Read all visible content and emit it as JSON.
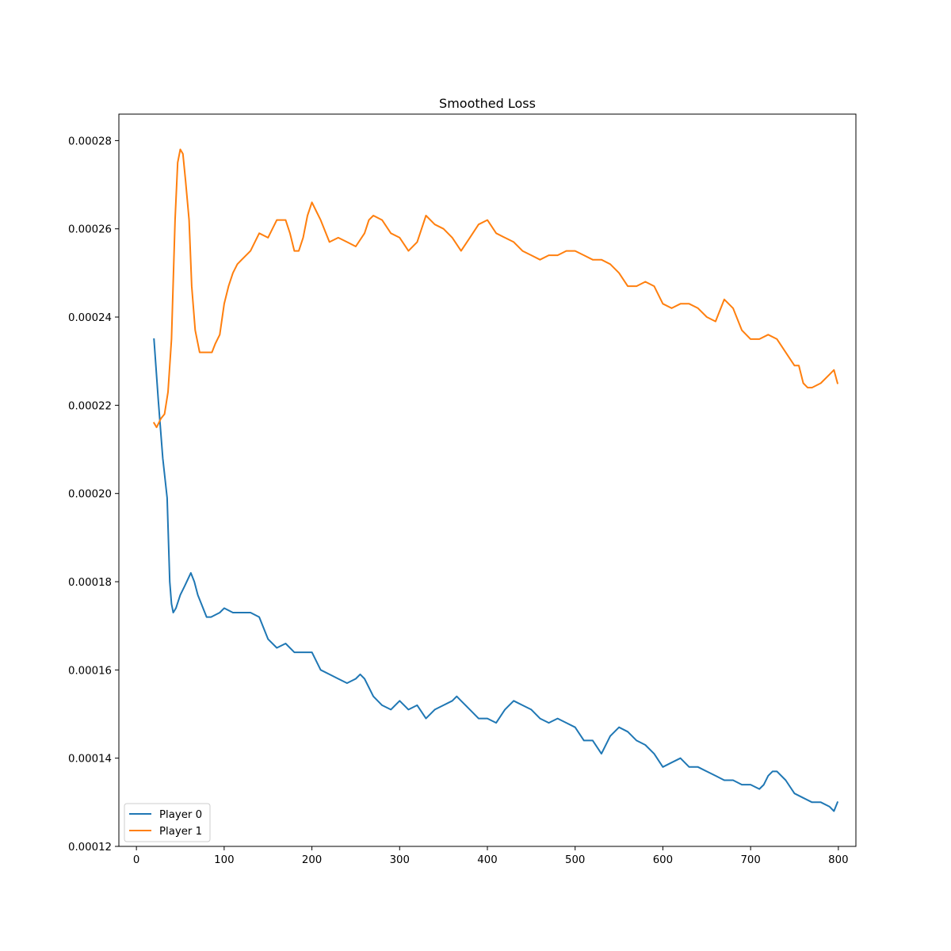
{
  "chart_data": {
    "type": "line",
    "title": "Smoothed Loss",
    "xlabel": "",
    "ylabel": "",
    "xlim": [
      -20,
      820
    ],
    "ylim": [
      0.00012,
      0.000286
    ],
    "xticks": [
      0,
      100,
      200,
      300,
      400,
      500,
      600,
      700,
      800
    ],
    "xtick_labels": [
      "0",
      "100",
      "200",
      "300",
      "400",
      "500",
      "600",
      "700",
      "800"
    ],
    "yticks": [
      0.00012,
      0.00014,
      0.00016,
      0.00018,
      0.0002,
      0.00022,
      0.00024,
      0.00026,
      0.00028
    ],
    "ytick_labels": [
      "0.00012",
      "0.00014",
      "0.00016",
      "0.00018",
      "0.00020",
      "0.00022",
      "0.00024",
      "0.00026",
      "0.00028"
    ],
    "grid": false,
    "legend_position": "lower-left",
    "series": [
      {
        "name": "Player 0",
        "color": "#1f77b4",
        "x": [
          20,
          25,
          30,
          35,
          38,
          40,
          42,
          45,
          50,
          55,
          62,
          66,
          70,
          80,
          85,
          95,
          100,
          110,
          120,
          130,
          140,
          150,
          160,
          170,
          180,
          190,
          200,
          210,
          220,
          230,
          240,
          250,
          255,
          260,
          270,
          280,
          290,
          300,
          310,
          320,
          330,
          340,
          350,
          360,
          365,
          370,
          380,
          390,
          400,
          410,
          420,
          430,
          440,
          450,
          460,
          470,
          480,
          490,
          500,
          510,
          520,
          530,
          540,
          550,
          560,
          570,
          580,
          590,
          600,
          610,
          620,
          630,
          640,
          650,
          660,
          670,
          680,
          690,
          700,
          710,
          715,
          720,
          725,
          730,
          740,
          750,
          760,
          770,
          780,
          790,
          795,
          799
        ],
        "values": [
          0.000235,
          0.000221,
          0.000208,
          0.000199,
          0.00018,
          0.000175,
          0.000173,
          0.000174,
          0.000177,
          0.000179,
          0.000182,
          0.00018,
          0.000177,
          0.000172,
          0.000172,
          0.000173,
          0.000174,
          0.000173,
          0.000173,
          0.000173,
          0.000172,
          0.000167,
          0.000165,
          0.000166,
          0.000164,
          0.000164,
          0.000164,
          0.00016,
          0.000159,
          0.000158,
          0.000157,
          0.000158,
          0.000159,
          0.000158,
          0.000154,
          0.000152,
          0.000151,
          0.000153,
          0.000151,
          0.000152,
          0.000149,
          0.000151,
          0.000152,
          0.000153,
          0.000154,
          0.000153,
          0.000151,
          0.000149,
          0.000149,
          0.000148,
          0.000151,
          0.000153,
          0.000152,
          0.000151,
          0.000149,
          0.000148,
          0.000149,
          0.000148,
          0.000147,
          0.000144,
          0.000144,
          0.000141,
          0.000145,
          0.000147,
          0.000146,
          0.000144,
          0.000143,
          0.000141,
          0.000138,
          0.000139,
          0.00014,
          0.000138,
          0.000138,
          0.000137,
          0.000136,
          0.000135,
          0.000135,
          0.000134,
          0.000134,
          0.000133,
          0.000134,
          0.000136,
          0.000137,
          0.000137,
          0.000135,
          0.000132,
          0.000131,
          0.00013,
          0.00013,
          0.000129,
          0.000128,
          0.00013
        ]
      },
      {
        "name": "Player 1",
        "color": "#ff7f0e",
        "x": [
          20,
          23,
          28,
          32,
          36,
          40,
          44,
          47,
          50,
          53,
          56,
          60,
          63,
          67,
          72,
          77,
          82,
          86,
          90,
          95,
          100,
          105,
          110,
          115,
          120,
          130,
          140,
          150,
          160,
          170,
          175,
          180,
          185,
          190,
          195,
          200,
          205,
          210,
          220,
          230,
          240,
          250,
          260,
          265,
          270,
          280,
          290,
          300,
          310,
          320,
          330,
          340,
          350,
          360,
          370,
          380,
          390,
          400,
          410,
          420,
          430,
          440,
          450,
          460,
          470,
          480,
          490,
          500,
          510,
          520,
          530,
          540,
          550,
          560,
          570,
          580,
          590,
          600,
          610,
          620,
          630,
          640,
          650,
          660,
          670,
          680,
          690,
          700,
          710,
          720,
          730,
          740,
          750,
          755,
          760,
          765,
          770,
          780,
          790,
          795,
          799
        ],
        "values": [
          0.000216,
          0.000215,
          0.000217,
          0.000218,
          0.000223,
          0.000235,
          0.000262,
          0.000275,
          0.000278,
          0.000277,
          0.000271,
          0.000262,
          0.000247,
          0.000237,
          0.000232,
          0.000232,
          0.000232,
          0.000232,
          0.000234,
          0.000236,
          0.000243,
          0.000247,
          0.00025,
          0.000252,
          0.000253,
          0.000255,
          0.000259,
          0.000258,
          0.000262,
          0.000262,
          0.000259,
          0.000255,
          0.000255,
          0.000258,
          0.000263,
          0.000266,
          0.000264,
          0.000262,
          0.000257,
          0.000258,
          0.000257,
          0.000256,
          0.000259,
          0.000262,
          0.000263,
          0.000262,
          0.000259,
          0.000258,
          0.000255,
          0.000257,
          0.000263,
          0.000261,
          0.00026,
          0.000258,
          0.000255,
          0.000258,
          0.000261,
          0.000262,
          0.000259,
          0.000258,
          0.000257,
          0.000255,
          0.000254,
          0.000253,
          0.000254,
          0.000254,
          0.000255,
          0.000255,
          0.000254,
          0.000253,
          0.000253,
          0.000252,
          0.00025,
          0.000247,
          0.000247,
          0.000248,
          0.000247,
          0.000243,
          0.000242,
          0.000243,
          0.000243,
          0.000242,
          0.00024,
          0.000239,
          0.000244,
          0.000242,
          0.000237,
          0.000235,
          0.000235,
          0.000236,
          0.000235,
          0.000232,
          0.000229,
          0.000229,
          0.000225,
          0.000224,
          0.000224,
          0.000225,
          0.000227,
          0.000228,
          0.000225
        ]
      }
    ]
  }
}
